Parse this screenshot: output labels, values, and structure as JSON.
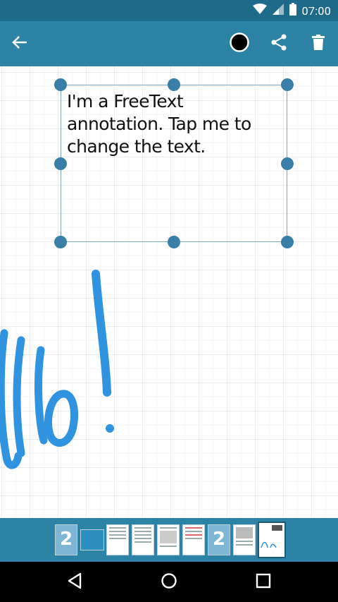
{
  "status_bar": {
    "time": "07:00"
  },
  "toolbar": {
    "back_icon": "arrow-left-icon",
    "color_icon": "color-circle-icon",
    "share_icon": "share-icon",
    "delete_icon": "trash-icon",
    "accent": "#2c83a6"
  },
  "annotation": {
    "text": "I'm a FreeText annotation. Tap me to change the text.",
    "ink_color": "#2f93e0",
    "ink_text": "Hello!"
  },
  "thumbnails": {
    "count": 9,
    "selected_index": 8
  },
  "navigation": {
    "back_icon": "nav-back-icon",
    "home_icon": "nav-home-icon",
    "recents_icon": "nav-recents-icon"
  }
}
